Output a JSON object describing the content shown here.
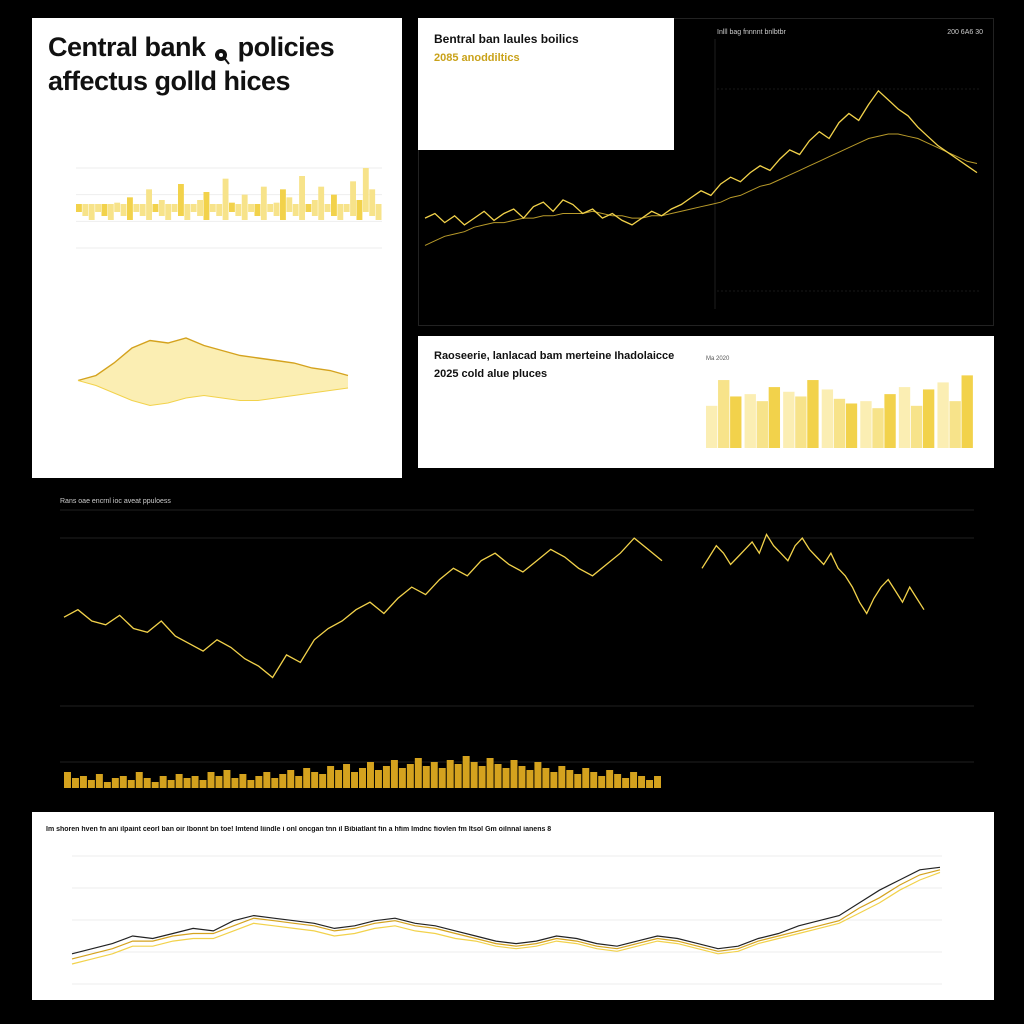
{
  "panel_a": {
    "title_line1": "Central bank",
    "title_icon": "pin-icon",
    "title_line2": "policies",
    "title_line3": "affectus golld hices"
  },
  "panel_b": {
    "title": "Bentral ban laules boilics",
    "subtitle": "2085 anoddiltics"
  },
  "panel_c": {
    "header_left": "Inlll bag fnnnnt bnlbtbr",
    "header_right": "200 6A6 30"
  },
  "panel_d": {
    "title": "Raoseerie, lanlacad bam merteine Ihadolaicce",
    "subtitle": "2025 cold alue pluces",
    "chart_label": "Ma 2020"
  },
  "panel_e": {
    "header": "Rans oae encrnl ioc aveat ppuloess"
  },
  "panel_f": {
    "header": "Im shoren hven fn ani ilpaint ceorl ban oir lbonnt bn toe! Imtend liindle i onl oncgan tnn il Bibiatlant fin a hfim Imdnc fiovlen fm Itsol Gm oilnnal ianens 8"
  },
  "colors": {
    "gold": "#f2d24b",
    "gold_light": "#f7e38a",
    "gold_pale": "#fbeeb3",
    "dark_line": "#222222",
    "amber": "#d4a21e"
  },
  "chart_data": [
    {
      "id": "panel-a-bars",
      "type": "bar",
      "values": [
        14,
        10,
        18,
        22,
        30,
        24,
        34,
        28,
        38,
        20,
        26,
        44,
        30,
        36,
        24,
        32,
        48,
        28,
        20,
        36,
        42,
        24,
        30,
        52,
        34,
        28,
        40,
        22,
        30,
        46,
        26,
        34,
        44,
        38,
        30,
        54,
        24,
        36,
        46,
        30,
        40,
        28,
        32,
        50,
        36,
        60,
        44,
        30
      ],
      "ylim": [
        0,
        60
      ]
    },
    {
      "id": "panel-a-area",
      "type": "area",
      "series": [
        {
          "values": [
            30,
            34,
            44,
            56,
            62,
            60,
            64,
            58,
            54,
            50,
            48,
            46,
            44,
            40,
            38,
            34
          ]
        },
        {
          "values": [
            30,
            26,
            20,
            14,
            10,
            12,
            16,
            18,
            16,
            14,
            14,
            16,
            18,
            20,
            22,
            24
          ]
        }
      ],
      "ylim": [
        0,
        80
      ]
    },
    {
      "id": "panel-c-line",
      "type": "line",
      "series": [
        {
          "values": [
            40,
            42,
            38,
            41,
            37,
            40,
            43,
            39,
            42,
            44,
            40,
            45,
            47,
            43,
            48,
            46,
            42,
            44,
            40,
            42,
            39,
            37,
            40,
            43,
            41,
            44,
            46,
            49,
            52,
            50,
            55,
            58,
            56,
            60,
            63,
            61,
            66,
            70,
            68,
            74,
            78,
            75,
            82,
            86,
            83,
            90,
            96,
            92,
            88,
            85,
            80,
            76,
            72,
            69,
            66,
            63,
            60
          ]
        },
        {
          "values": [
            28,
            30,
            32,
            33,
            34,
            36,
            37,
            38,
            38,
            39,
            40,
            40,
            41,
            41,
            42,
            42,
            42,
            43,
            42,
            41,
            41,
            40,
            40,
            41,
            41,
            42,
            43,
            44,
            45,
            46,
            47,
            49,
            50,
            52,
            54,
            55,
            57,
            59,
            61,
            63,
            65,
            67,
            69,
            71,
            73,
            75,
            76,
            77,
            77,
            76,
            75,
            73,
            71,
            69,
            67,
            65,
            64
          ]
        }
      ],
      "ylim": [
        0,
        110
      ]
    },
    {
      "id": "panel-d-bars",
      "type": "bar",
      "series": [
        {
          "values": [
            36,
            46,
            48,
            50,
            40,
            52,
            56
          ]
        },
        {
          "values": [
            58,
            40,
            44,
            42,
            34,
            36,
            40
          ]
        },
        {
          "values": [
            44,
            52,
            58,
            38,
            46,
            50,
            62
          ]
        }
      ],
      "ylim": [
        0,
        70
      ]
    },
    {
      "id": "panel-e-price",
      "type": "line",
      "values": [
        62,
        66,
        60,
        58,
        63,
        56,
        54,
        60,
        52,
        48,
        44,
        50,
        46,
        40,
        36,
        30,
        42,
        38,
        50,
        56,
        60,
        66,
        70,
        64,
        72,
        78,
        74,
        82,
        88,
        84,
        92,
        96,
        90,
        86,
        92,
        98,
        94,
        88,
        84,
        90,
        96,
        104,
        98,
        92,
        88,
        94,
        100,
        96,
        90,
        94,
        98,
        102,
        96,
        106,
        100,
        96,
        92,
        100,
        104,
        98,
        94,
        90,
        96,
        88,
        84,
        78,
        70,
        64,
        72,
        78,
        82,
        76,
        70,
        78,
        72,
        66
      ],
      "ylim": [
        0,
        120
      ]
    },
    {
      "id": "panel-e-volume",
      "type": "bar",
      "values": [
        8,
        5,
        6,
        4,
        7,
        3,
        5,
        6,
        4,
        8,
        5,
        3,
        6,
        4,
        7,
        5,
        6,
        4,
        8,
        6,
        9,
        5,
        7,
        4,
        6,
        8,
        5,
        7,
        9,
        6,
        10,
        8,
        7,
        11,
        9,
        12,
        8,
        10,
        13,
        9,
        11,
        14,
        10,
        12,
        15,
        11,
        13,
        10,
        14,
        12,
        16,
        13,
        11,
        15,
        12,
        10,
        14,
        11,
        9,
        13,
        10,
        8,
        11,
        9,
        7,
        10,
        8,
        6,
        9,
        7,
        5,
        8,
        6,
        4,
        6
      ],
      "ylim": [
        0,
        20
      ]
    },
    {
      "id": "panel-f-lines",
      "type": "line",
      "series": [
        {
          "values": [
            30,
            34,
            38,
            44,
            42,
            46,
            50,
            48,
            56,
            60,
            58,
            56,
            54,
            50,
            52,
            56,
            58,
            54,
            52,
            48,
            44,
            40,
            38,
            40,
            44,
            42,
            38,
            36,
            40,
            44,
            42,
            38,
            34,
            36,
            42,
            46,
            52,
            56,
            60,
            70,
            80,
            88,
            96,
            98
          ]
        },
        {
          "values": [
            26,
            30,
            34,
            40,
            40,
            44,
            46,
            46,
            52,
            58,
            56,
            54,
            52,
            48,
            50,
            54,
            56,
            52,
            50,
            46,
            42,
            38,
            36,
            38,
            42,
            40,
            36,
            34,
            38,
            42,
            40,
            36,
            32,
            34,
            40,
            44,
            48,
            52,
            56,
            66,
            74,
            84,
            92,
            96
          ]
        },
        {
          "values": [
            22,
            26,
            30,
            36,
            36,
            40,
            42,
            42,
            48,
            54,
            52,
            50,
            48,
            44,
            46,
            50,
            52,
            48,
            46,
            42,
            40,
            36,
            34,
            36,
            40,
            38,
            34,
            32,
            36,
            40,
            38,
            34,
            30,
            32,
            38,
            42,
            46,
            50,
            54,
            62,
            70,
            80,
            88,
            94
          ]
        }
      ],
      "ylim": [
        0,
        110
      ]
    }
  ]
}
